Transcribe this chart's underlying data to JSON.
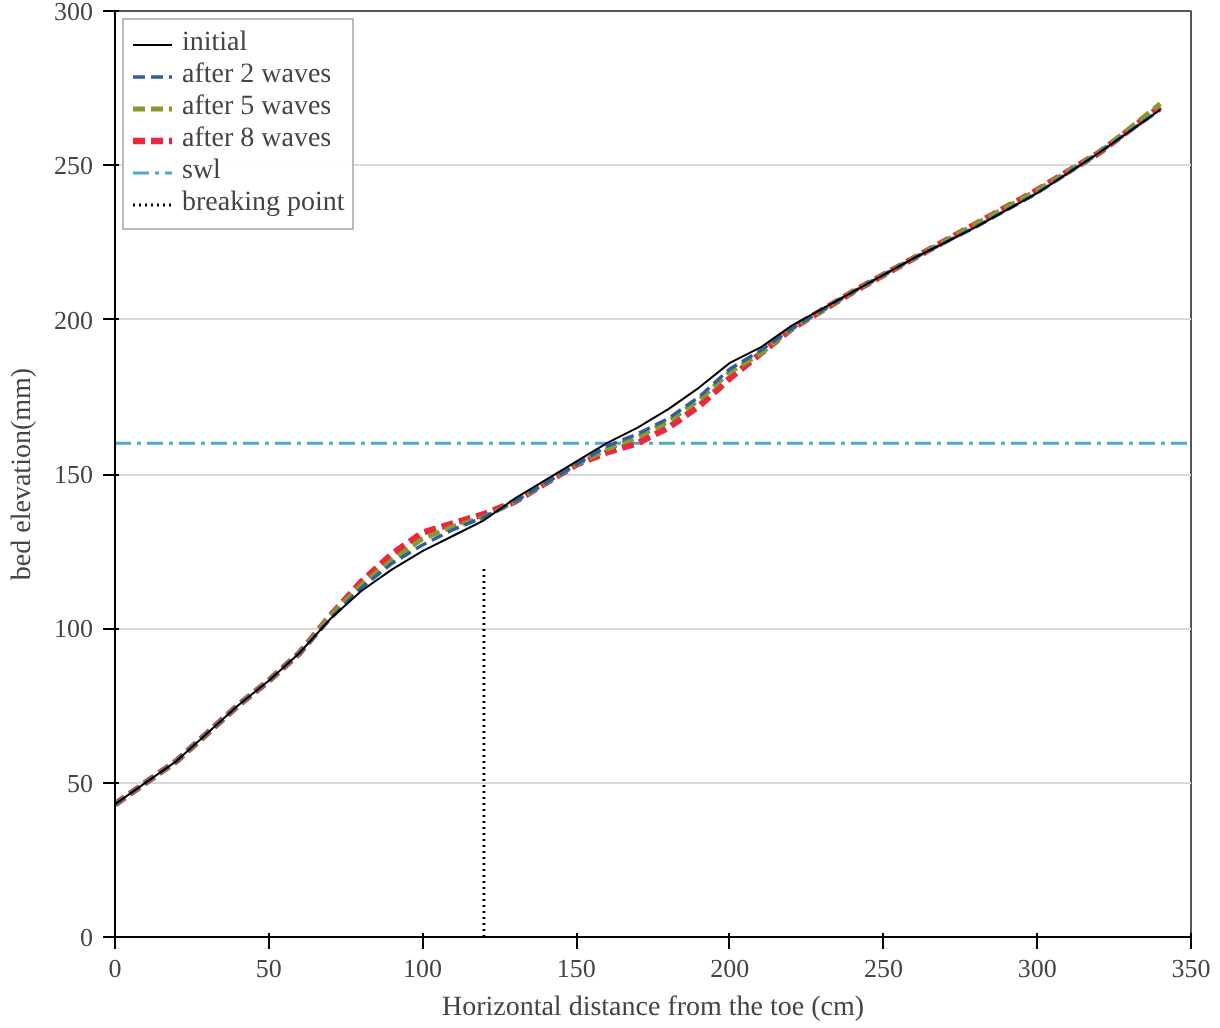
{
  "chart_data": {
    "type": "line",
    "xlabel": "Horizontal distance from the toe (cm)",
    "ylabel": "bed elevation(mm)",
    "xlim": [
      0,
      350
    ],
    "xticks": [
      0,
      50,
      100,
      150,
      200,
      250,
      300,
      350
    ],
    "ylim": [
      0,
      300
    ],
    "yticks": [
      0,
      50,
      100,
      150,
      200,
      250,
      300
    ],
    "grid": "y",
    "legend": "top left",
    "series": [
      {
        "name": "initial",
        "color": "#000000",
        "line_style": "solid",
        "x": [
          0,
          10,
          20,
          30,
          40,
          50,
          60,
          70,
          80,
          90,
          100,
          110,
          120,
          130,
          140,
          150,
          160,
          170,
          180,
          190,
          200,
          210,
          220,
          240,
          260,
          280,
          300,
          320,
          340
        ],
        "values": [
          43,
          50,
          57,
          66,
          75,
          83,
          92,
          103,
          112,
          119,
          125,
          130,
          135,
          142,
          148,
          154,
          160,
          165,
          171,
          178,
          186,
          191,
          198,
          209,
          220,
          230,
          241,
          254,
          268
        ]
      },
      {
        "name": "after 2 waves",
        "color": "#2e5fa3",
        "line_style": "dashed",
        "x": [
          0,
          10,
          20,
          30,
          40,
          50,
          60,
          70,
          80,
          90,
          100,
          110,
          120,
          130,
          140,
          150,
          160,
          170,
          180,
          190,
          200,
          210,
          220,
          240,
          260,
          280,
          300,
          320,
          340
        ],
        "values": [
          43,
          50,
          57,
          66,
          75,
          83,
          92,
          103,
          113,
          121,
          127,
          132,
          136,
          141,
          147,
          153,
          159,
          163,
          168,
          175,
          184,
          190,
          197,
          209,
          220,
          230,
          241,
          254,
          268
        ]
      },
      {
        "name": "after 5 waves",
        "color": "#8a9a2a",
        "line_style": "dashed",
        "x": [
          0,
          10,
          20,
          30,
          40,
          50,
          60,
          70,
          80,
          90,
          100,
          110,
          120,
          130,
          140,
          150,
          160,
          170,
          180,
          190,
          200,
          210,
          220,
          240,
          260,
          280,
          300,
          320,
          340
        ],
        "values": [
          43,
          50,
          57,
          66,
          75,
          83,
          92,
          104,
          114,
          122,
          129,
          133,
          136,
          141,
          147,
          153,
          158,
          162,
          167,
          174,
          183,
          189,
          197,
          209,
          220,
          231,
          242,
          254,
          270
        ]
      },
      {
        "name": "after 8 waves",
        "color": "#e8283c",
        "line_style": "dashed",
        "x": [
          0,
          10,
          20,
          30,
          40,
          50,
          60,
          70,
          80,
          90,
          100,
          110,
          120,
          130,
          140,
          150,
          160,
          170,
          180,
          190,
          200,
          210,
          220,
          240,
          260,
          280,
          300,
          320,
          340
        ],
        "values": [
          43,
          50,
          57,
          66,
          75,
          83,
          92,
          104,
          115,
          124,
          131,
          134,
          137,
          141,
          147,
          153,
          157,
          160,
          165,
          172,
          181,
          189,
          197,
          209,
          220,
          231,
          242,
          254,
          269
        ]
      },
      {
        "name": "swl",
        "color": "#4bacc6",
        "line_style": "dashdot",
        "x": [
          0,
          350
        ],
        "values": [
          160,
          160
        ]
      },
      {
        "name": "breaking point",
        "color": "#000000",
        "line_style": "dotted",
        "x": [
          120,
          120
        ],
        "values": [
          0,
          120
        ]
      }
    ]
  }
}
